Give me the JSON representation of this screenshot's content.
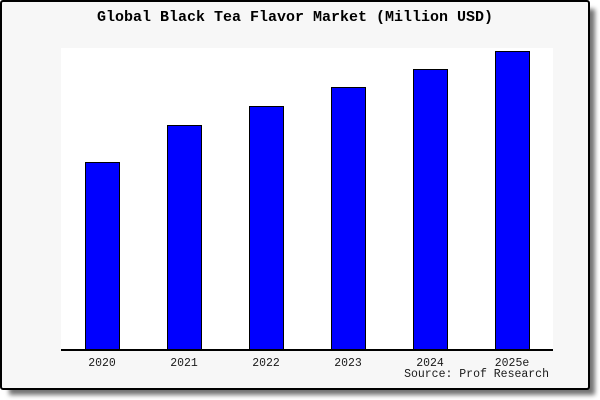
{
  "title": "Global Black Tea Flavor Market (Million USD)",
  "source_note": "Source: Prof Research",
  "colors": {
    "bar_fill": "#0000ff",
    "bar_edge": "#000000",
    "figure_background": "#f7f7f7",
    "plot_background": "#ffffff",
    "axis_line": "#000000",
    "text": "#000000"
  },
  "chart_data": {
    "type": "bar",
    "title": "Global Black Tea Flavor Market (Million USD)",
    "categories": [
      "2020",
      "2021",
      "2022",
      "2023",
      "2024",
      "2025e"
    ],
    "values": [
      187,
      224,
      243,
      262,
      280,
      298
    ],
    "values_pct_of_max": [
      62.8,
      75.2,
      81.5,
      87.9,
      94.0,
      100.0
    ],
    "value_axis": "unlabeled (no y-axis ticks, labels or gridlines shown; values are relative bar heights in pixels)",
    "xlabel": "",
    "ylabel": "",
    "grid": false,
    "legend": false,
    "bar_color": "#0000ff",
    "bar_edge_color": "#000000",
    "annotation": "Source: Prof Research"
  }
}
